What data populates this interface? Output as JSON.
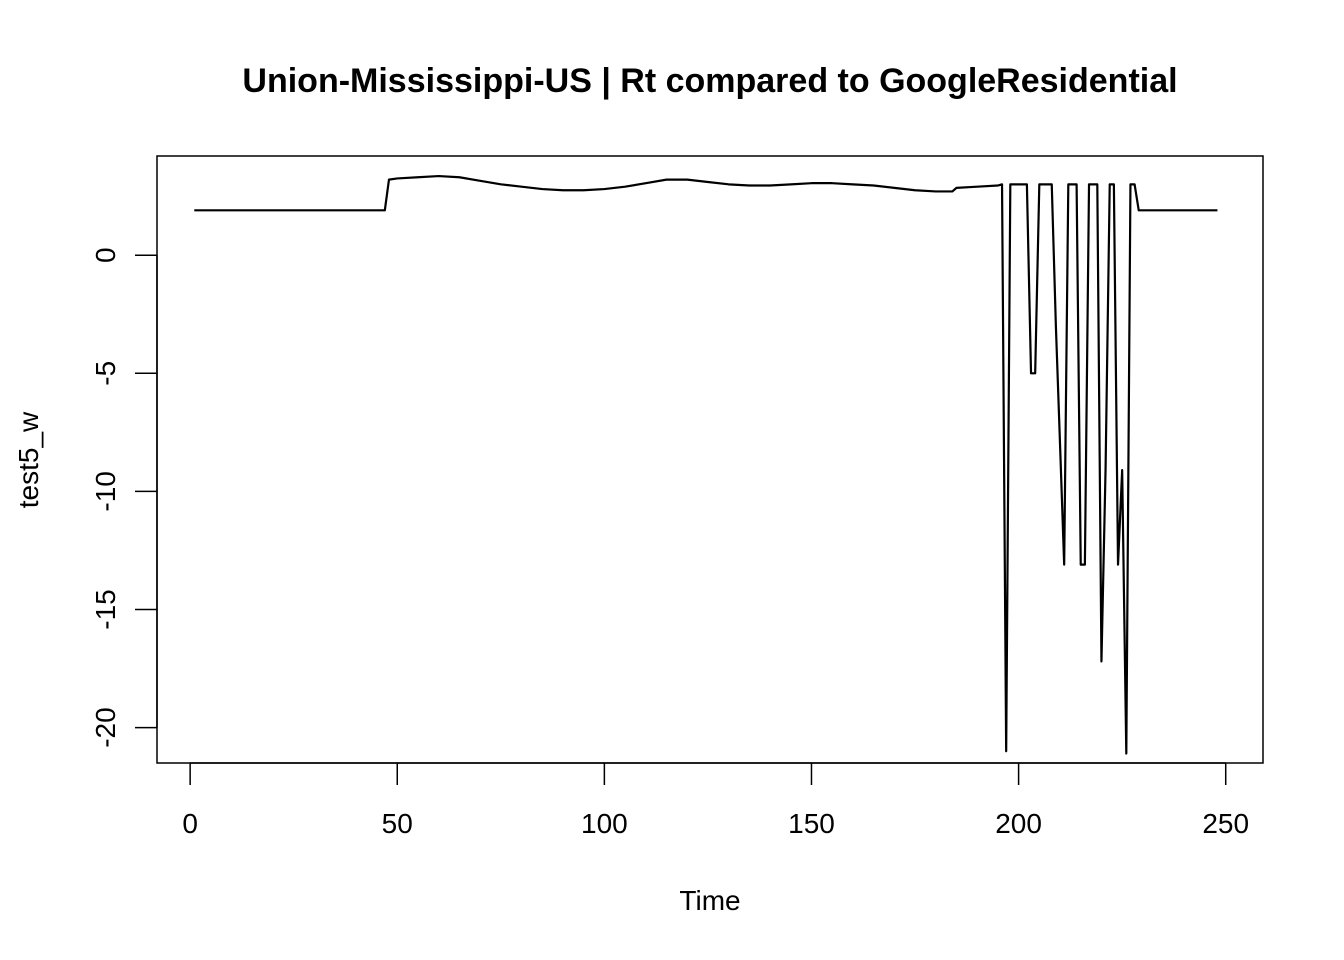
{
  "chart_data": {
    "type": "line",
    "title": "Union-Mississippi-US | Rt compared to GoogleResidential",
    "xlabel": "Time",
    "ylabel": "test5_w",
    "xlim": [
      -8,
      259
    ],
    "ylim": [
      -21.5,
      4.2
    ],
    "x_ticks": [
      0,
      50,
      100,
      150,
      200,
      250
    ],
    "y_ticks": [
      0,
      -5,
      -10,
      -15,
      -20
    ],
    "x_tick_labels": [
      "0",
      "50",
      "100",
      "150",
      "200",
      "250"
    ],
    "y_tick_labels": [
      "0",
      "-5",
      "-10",
      "-15",
      "-20"
    ],
    "grid": false,
    "legend": "none",
    "series": [
      {
        "x": [
          1,
          47,
          48,
          50,
          55,
          60,
          65,
          70,
          75,
          80,
          85,
          90,
          95,
          100,
          105,
          110,
          115,
          120,
          125,
          130,
          135,
          140,
          145,
          150,
          155,
          160,
          165,
          170,
          175,
          180,
          184,
          185,
          190,
          195,
          196,
          197,
          198,
          199,
          200,
          202,
          203,
          204,
          205,
          206,
          208,
          209,
          210,
          211,
          212,
          213,
          214,
          215,
          216,
          217,
          218,
          219,
          220,
          221,
          222,
          223,
          224,
          225,
          226,
          227,
          228,
          229,
          230,
          231,
          232,
          233,
          234,
          235,
          236,
          237,
          248
        ],
        "values": [
          1.9,
          1.9,
          3.2,
          3.25,
          3.3,
          3.35,
          3.3,
          3.15,
          3.0,
          2.9,
          2.8,
          2.75,
          2.75,
          2.8,
          2.9,
          3.05,
          3.2,
          3.2,
          3.1,
          3.0,
          2.95,
          2.95,
          3.0,
          3.05,
          3.05,
          3.0,
          2.95,
          2.85,
          2.75,
          2.7,
          2.7,
          2.85,
          2.9,
          2.95,
          3.0,
          -21.0,
          3.0,
          3.0,
          3.0,
          3.0,
          -5.0,
          -5.0,
          3.0,
          3.0,
          3.0,
          -3.0,
          -8.0,
          -13.1,
          3.0,
          3.0,
          3.0,
          -13.1,
          -13.1,
          3.0,
          3.0,
          3.0,
          -17.2,
          -9.0,
          3.0,
          3.0,
          -13.1,
          -9.1,
          -21.1,
          3.0,
          3.0,
          1.9,
          1.9,
          1.9,
          1.9,
          1.9,
          1.9,
          1.9,
          1.9,
          1.9,
          1.9
        ]
      }
    ]
  },
  "colors": {
    "line": "#000000",
    "background": "#ffffff",
    "frame": "#000000"
  }
}
